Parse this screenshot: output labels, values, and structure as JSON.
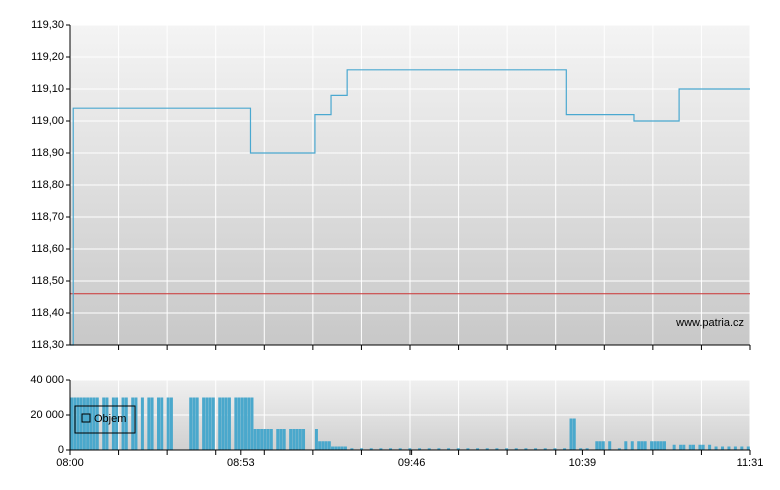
{
  "chart_data": [
    {
      "type": "line",
      "step": "after",
      "color": "#4aa8d0",
      "x": [
        "08:00",
        "08:01",
        "08:56",
        "09:16",
        "09:21",
        "09:26",
        "10:34",
        "10:55",
        "11:09",
        "11:31"
      ],
      "values": [
        118.3,
        119.04,
        118.9,
        119.02,
        119.08,
        119.16,
        119.02,
        119.0,
        119.1,
        119.1
      ],
      "xlim": [
        "08:00",
        "11:31"
      ],
      "ylim": [
        118.3,
        119.3
      ],
      "yticks": [
        {
          "value": 118.3,
          "label": "118,30"
        },
        {
          "value": 118.4,
          "label": "118,40"
        },
        {
          "value": 118.5,
          "label": "118,50"
        },
        {
          "value": 118.6,
          "label": "118,60"
        },
        {
          "value": 118.7,
          "label": "118,70"
        },
        {
          "value": 118.8,
          "label": "118,80"
        },
        {
          "value": 118.9,
          "label": "118,90"
        },
        {
          "value": 119.0,
          "label": "119,00"
        },
        {
          "value": 119.1,
          "label": "119,10"
        },
        {
          "value": 119.2,
          "label": "119,20"
        },
        {
          "value": 119.3,
          "label": "119,30"
        }
      ],
      "reference_line": 118.46,
      "reference_color": "#cc3333",
      "watermark": "www.patria.cz",
      "grid": true
    },
    {
      "type": "bar",
      "x": [
        "08:00",
        "08:01",
        "08:02",
        "08:03",
        "08:04",
        "08:05",
        "08:06",
        "08:07",
        "08:08",
        "08:10",
        "08:11",
        "08:13",
        "08:14",
        "08:16",
        "08:17",
        "08:19",
        "08:20",
        "08:22",
        "08:24",
        "08:25",
        "08:27",
        "08:28",
        "08:30",
        "08:31",
        "08:37",
        "08:38",
        "08:39",
        "08:41",
        "08:42",
        "08:43",
        "08:44",
        "08:46",
        "08:47",
        "08:48",
        "08:49",
        "08:51",
        "08:52",
        "08:53",
        "08:54",
        "08:55",
        "08:56",
        "08:57",
        "08:58",
        "08:59",
        "09:00",
        "09:01",
        "09:02",
        "09:04",
        "09:05",
        "09:06",
        "09:08",
        "09:09",
        "09:10",
        "09:11",
        "09:12",
        "09:16",
        "09:17",
        "09:18",
        "09:19",
        "09:20",
        "09:21",
        "09:22",
        "09:23",
        "09:24",
        "09:25",
        "09:27",
        "09:30",
        "09:33",
        "09:36",
        "09:39",
        "09:42",
        "09:45",
        "09:48",
        "09:51",
        "09:54",
        "09:57",
        "10:00",
        "10:03",
        "10:06",
        "10:09",
        "10:12",
        "10:15",
        "10:18",
        "10:21",
        "10:24",
        "10:27",
        "10:30",
        "10:33",
        "10:35",
        "10:36",
        "10:38",
        "10:40",
        "10:43",
        "10:44",
        "10:45",
        "10:47",
        "10:50",
        "10:52",
        "10:54",
        "10:56",
        "10:57",
        "10:58",
        "11:00",
        "11:01",
        "11:02",
        "11:03",
        "11:04",
        "11:07",
        "11:09",
        "11:10",
        "11:12",
        "11:13",
        "11:15",
        "11:16",
        "11:18",
        "11:20",
        "11:22",
        "11:24",
        "11:26",
        "11:28",
        "11:30"
      ],
      "series": [
        {
          "name": "Objem",
          "color": "#4aa8cc",
          "values": [
            30000,
            30000,
            30000,
            30000,
            30000,
            30000,
            30000,
            30000,
            30000,
            30000,
            30000,
            30000,
            30000,
            30000,
            30000,
            30000,
            30000,
            30000,
            30000,
            30000,
            30000,
            30000,
            30000,
            30000,
            30000,
            30000,
            30000,
            30000,
            30000,
            30000,
            30000,
            30000,
            30000,
            30000,
            30000,
            30000,
            30000,
            30000,
            30000,
            30000,
            30000,
            12000,
            12000,
            12000,
            12000,
            12000,
            12000,
            12000,
            12000,
            12000,
            12000,
            12000,
            12000,
            12000,
            12000,
            12000,
            5000,
            5000,
            5000,
            5000,
            2000,
            2000,
            2000,
            2000,
            2000,
            1000,
            1000,
            1000,
            1000,
            1000,
            1000,
            1000,
            1000,
            1000,
            1000,
            1000,
            1000,
            1000,
            1000,
            1000,
            1000,
            1000,
            1000,
            1000,
            1000,
            1000,
            1000,
            1000,
            18000,
            18000,
            1000,
            1000,
            5000,
            5000,
            5000,
            5000,
            1000,
            5000,
            5000,
            5000,
            5000,
            5000,
            5000,
            5000,
            5000,
            5000,
            5000,
            3000,
            3000,
            3000,
            3000,
            3000,
            3000,
            3000,
            3000,
            2000,
            2000,
            2000,
            2000,
            2000,
            2000
          ]
        }
      ],
      "xlim": [
        "08:00",
        "11:31"
      ],
      "xticks": [
        "08:00",
        "08:53",
        "09:46",
        "10:39",
        "11:31"
      ],
      "ylim": [
        0,
        40000
      ],
      "yticks": [
        0,
        {
          "value": 20000,
          "label": "20 000"
        },
        {
          "value": 40000,
          "label": "40 000"
        }
      ],
      "legend": "upper left",
      "grid": true
    }
  ]
}
